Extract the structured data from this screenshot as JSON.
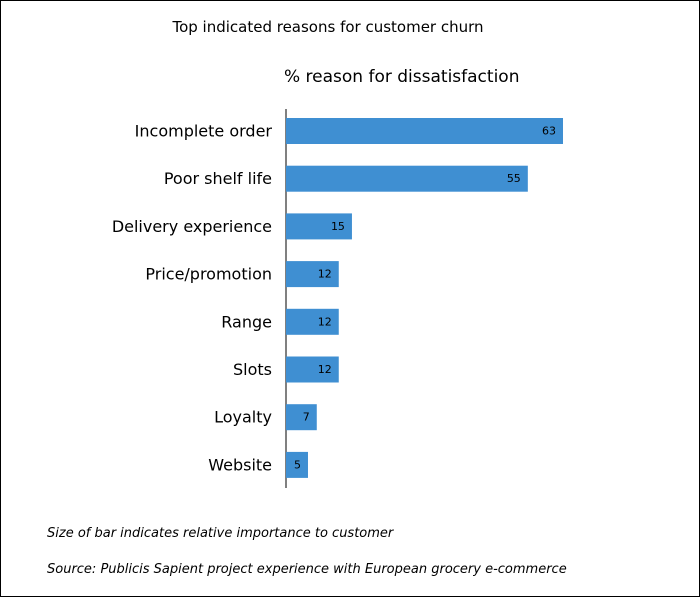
{
  "chart_data": {
    "type": "bar",
    "orientation": "horizontal",
    "title": "Top indicated reasons for customer churn",
    "subtitle": "% reason for dissatisfaction",
    "categories": [
      "Incomplete order",
      "Poor shelf life",
      "Delivery experience",
      "Price/promotion",
      "Range",
      "Slots",
      "Loyalty",
      "Website"
    ],
    "values": [
      63,
      55,
      15,
      12,
      12,
      12,
      7,
      5
    ],
    "xlim": [
      0,
      63
    ],
    "grid": false,
    "legend": "none",
    "bar_color": "#3f8fd2",
    "notes": [
      "Size of bar indicates relative importance to customer",
      "Source: Publicis Sapient project experience with European grocery e-commerce"
    ]
  }
}
